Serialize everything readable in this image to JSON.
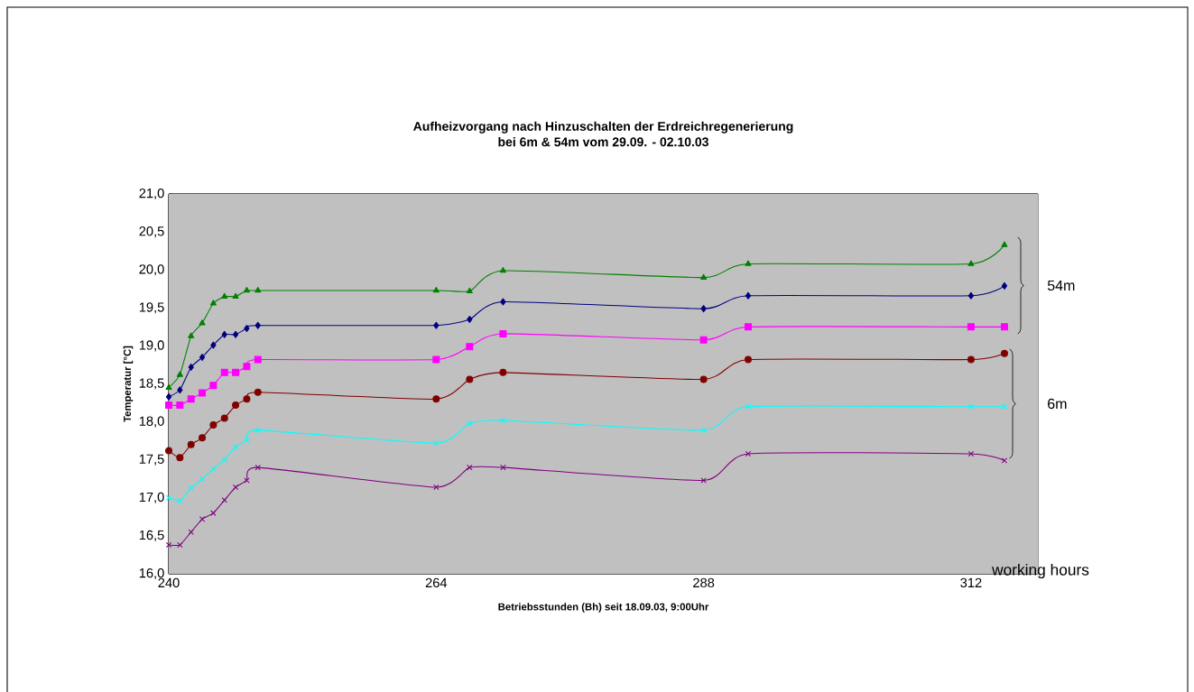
{
  "chart_data": {
    "type": "line",
    "title": "Aufheizvorgang nach Hinzuschalten der Erdreichregenerierung",
    "subtitle": "bei 6m & 54m vom 29.09. - 02.10.03",
    "xlabel": "Betriebsstunden (Bh) seit 18.09.03, 9:00Uhr",
    "ylabel": "Temperatur [°C]",
    "annotations": [
      "54m",
      "6m",
      "working hours"
    ],
    "x": [
      240,
      241,
      242,
      243,
      244,
      245,
      246,
      247,
      248,
      264,
      267,
      270,
      288,
      292,
      312,
      315
    ],
    "series": [
      {
        "color": "#008000",
        "marker": "triangle",
        "values": [
          18.45,
          18.62,
          19.13,
          19.3,
          19.56,
          19.65,
          19.65,
          19.73,
          19.73,
          19.73,
          19.72,
          19.99,
          19.9,
          20.08,
          20.08,
          20.33
        ]
      },
      {
        "color": "#000080",
        "marker": "diamond",
        "values": [
          18.33,
          18.42,
          18.72,
          18.85,
          19.01,
          19.15,
          19.15,
          19.23,
          19.27,
          19.27,
          19.35,
          19.58,
          19.49,
          19.66,
          19.66,
          19.79
        ]
      },
      {
        "color": "#ff00ff",
        "marker": "square",
        "values": [
          18.22,
          18.22,
          18.3,
          18.38,
          18.48,
          18.65,
          18.65,
          18.73,
          18.82,
          18.82,
          18.99,
          19.16,
          19.08,
          19.25,
          19.25,
          19.25
        ]
      },
      {
        "color": "#800000",
        "marker": "circle",
        "values": [
          17.62,
          17.53,
          17.7,
          17.79,
          17.96,
          18.05,
          18.22,
          18.3,
          18.39,
          18.3,
          18.56,
          18.65,
          18.56,
          18.82,
          18.82,
          18.9
        ]
      },
      {
        "color": "#00ffff",
        "marker": "cross",
        "values": [
          17.0,
          16.96,
          17.13,
          17.25,
          17.38,
          17.5,
          17.67,
          17.76,
          17.89,
          17.72,
          17.98,
          18.02,
          17.89,
          18.2,
          18.2,
          18.2
        ]
      },
      {
        "color": "#800080",
        "marker": "cross",
        "values": [
          16.38,
          16.38,
          16.55,
          16.72,
          16.8,
          16.97,
          17.14,
          17.23,
          17.4,
          17.14,
          17.4,
          17.4,
          17.23,
          17.58,
          17.58,
          17.49
        ]
      }
    ],
    "xlim": [
      240,
      318
    ],
    "ylim": [
      16,
      21
    ],
    "xticks": [
      240,
      264,
      288,
      312
    ],
    "yticks": [
      {
        "value": 16,
        "label": "16,0"
      },
      {
        "value": 16.5,
        "label": "16,5"
      },
      {
        "value": 17,
        "label": "17,0"
      },
      {
        "value": 17.5,
        "label": "17,5"
      },
      {
        "value": 18,
        "label": "18,0"
      },
      {
        "value": 18.5,
        "label": "18,5"
      },
      {
        "value": 19,
        "label": "19,0"
      },
      {
        "value": 19.5,
        "label": "19,5"
      },
      {
        "value": 20,
        "label": "20,0"
      },
      {
        "value": 20.5,
        "label": "20,5"
      },
      {
        "value": 21,
        "label": "21,0"
      }
    ],
    "grid": true,
    "line_style": "solid"
  }
}
